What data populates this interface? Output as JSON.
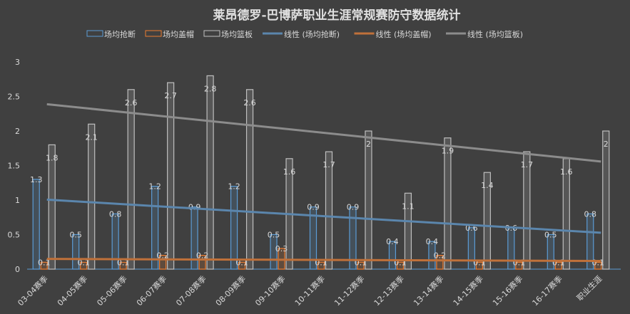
{
  "chart_data": {
    "type": "bar",
    "title": "莱昂德罗-巴博萨职业生涯常规赛防守数据统计",
    "categories": [
      "03-04赛季",
      "04-05赛季",
      "05-06赛季",
      "06-07赛季",
      "07-08赛季",
      "08-09赛季",
      "09-10赛季",
      "10-11赛季",
      "11-12赛季",
      "12-13赛季",
      "13-14赛季",
      "14-15赛季",
      "15-16赛季",
      "16-17赛季",
      "职业生涯"
    ],
    "series": [
      {
        "name": "场均抢断",
        "color": "#5b9bd5",
        "values": [
          1.3,
          0.5,
          0.8,
          1.2,
          0.9,
          1.2,
          0.5,
          0.9,
          0.9,
          0.4,
          0.4,
          0.6,
          0.6,
          0.5,
          0.8
        ]
      },
      {
        "name": "场均盖帽",
        "color": "#ed7d31",
        "values": [
          0.1,
          0.1,
          0.1,
          0.2,
          0.2,
          0.1,
          0.3,
          0.1,
          0.1,
          0.1,
          0.2,
          0.1,
          0.1,
          0.1,
          0.1
        ]
      },
      {
        "name": "场均篮板",
        "color": "#bfbfbf",
        "values": [
          1.8,
          2.1,
          2.6,
          2.7,
          2.8,
          2.6,
          1.6,
          1.7,
          2,
          1.1,
          1.9,
          1.4,
          1.7,
          1.6,
          2
        ]
      }
    ],
    "trendlines": [
      {
        "name": "线性 (场均抢断)",
        "color": "#5b86ad",
        "series": 0
      },
      {
        "name": "线性 (场均盖帽)",
        "color": "#c0713a",
        "series": 1
      },
      {
        "name": "线性 (场均篮板)",
        "color": "#8c8c8c",
        "series": 2
      }
    ],
    "yticks": [
      "0",
      "0.5",
      "1",
      "1.5",
      "2",
      "2.5",
      "3"
    ],
    "ylim": [
      0,
      3
    ],
    "grid": false,
    "legend": "top"
  }
}
